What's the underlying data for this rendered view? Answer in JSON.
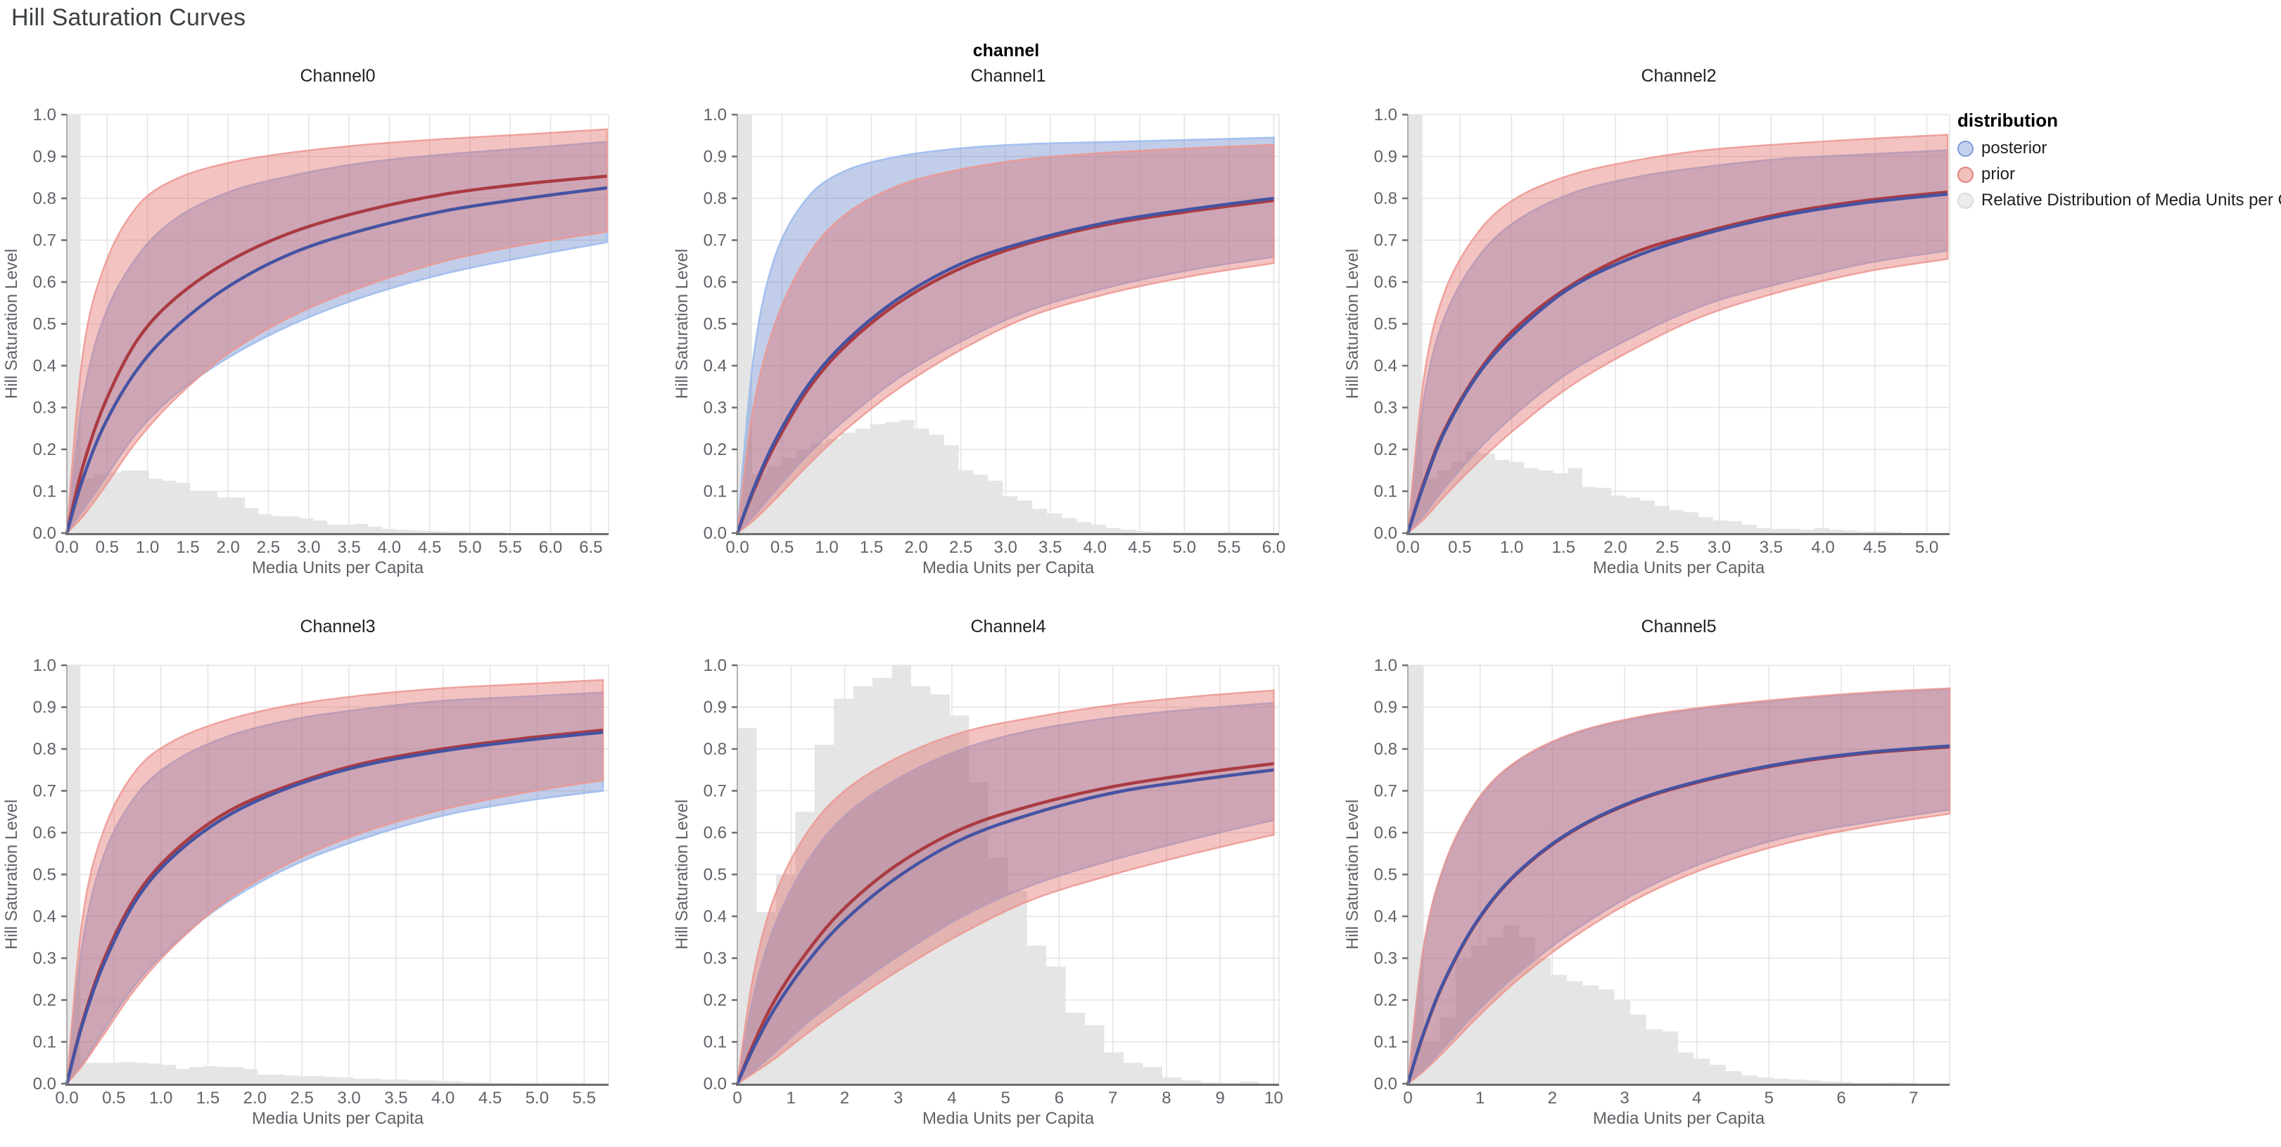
{
  "page_title": "Hill Saturation Curves",
  "facet_header": "channel",
  "legend": {
    "title": "distribution",
    "items": [
      {
        "label": "posterior",
        "fill": "#c3d2ee",
        "stroke": "#7e9bd9"
      },
      {
        "label": "prior",
        "fill": "#f3c1bd",
        "stroke": "#dd837e"
      },
      {
        "label": "Relative Distribution of Media Units per Capita",
        "fill": "#ececec",
        "stroke": "#dadada"
      }
    ]
  },
  "axes": {
    "x_label": "Media Units per Capita",
    "y_label": "Hill Saturation Level",
    "y_ticks": [
      "0.0",
      "0.1",
      "0.2",
      "0.3",
      "0.4",
      "0.5",
      "0.6",
      "0.7",
      "0.8",
      "0.9",
      "1.0"
    ],
    "ylim": [
      0,
      1
    ]
  },
  "colors": {
    "prior_fill": "rgba(224,106,99,0.40)",
    "prior_edge": "rgba(236,150,144,0.85)",
    "prior_line": "#aa3b42",
    "posterior_fill": "rgba(100,130,200,0.40)",
    "posterior_edge": "rgba(160,190,238,0.95)",
    "posterior_line": "#4553a2",
    "histogram_fill": "rgba(208,208,208,0.55)",
    "grid": "#e3e3e3",
    "axis": "#6e6e6e",
    "tick_text": "#5f6368",
    "title_text": "#1f1f1f"
  },
  "chart_data": [
    {
      "type": "line",
      "title": "Channel0",
      "xlabel": "Media Units per Capita",
      "ylabel": "Hill Saturation Level",
      "x_max": 6.72,
      "x_ticks": [
        0,
        0.5,
        1,
        1.5,
        2,
        2.5,
        3,
        3.5,
        4,
        4.5,
        5,
        5.5,
        6,
        6.5
      ],
      "x_tick_labels": [
        "0.0",
        "0.5",
        "1.0",
        "1.5",
        "2.0",
        "2.5",
        "3.0",
        "3.5",
        "4.0",
        "4.5",
        "5.0",
        "5.5",
        "6.0",
        "6.5"
      ],
      "x": [
        0,
        0.2,
        0.47,
        0.87,
        1.34,
        2.01,
        2.81,
        3.69,
        4.69,
        5.7,
        6.7
      ],
      "posterior": {
        "lo": [
          0,
          0.055,
          0.13,
          0.24,
          0.33,
          0.42,
          0.5,
          0.565,
          0.62,
          0.66,
          0.695
        ],
        "mean": [
          0,
          0.13,
          0.26,
          0.39,
          0.49,
          0.59,
          0.67,
          0.725,
          0.77,
          0.8,
          0.825
        ],
        "hi": [
          0,
          0.32,
          0.52,
          0.66,
          0.75,
          0.815,
          0.855,
          0.885,
          0.905,
          0.92,
          0.935
        ]
      },
      "prior": {
        "lo": [
          0,
          0.04,
          0.11,
          0.22,
          0.32,
          0.43,
          0.52,
          0.59,
          0.65,
          0.69,
          0.72
        ],
        "mean": [
          0,
          0.16,
          0.31,
          0.46,
          0.56,
          0.65,
          0.72,
          0.77,
          0.81,
          0.835,
          0.853
        ],
        "hi": [
          0,
          0.43,
          0.64,
          0.78,
          0.845,
          0.885,
          0.91,
          0.928,
          0.942,
          0.953,
          0.965
        ]
      },
      "histogram": {
        "bin_width": 0.17,
        "start": 0,
        "heights": [
          1.0,
          0.13,
          0.14,
          0.145,
          0.15,
          0.15,
          0.13,
          0.125,
          0.12,
          0.1,
          0.1,
          0.085,
          0.085,
          0.06,
          0.045,
          0.04,
          0.04,
          0.035,
          0.03,
          0.02,
          0.02,
          0.022,
          0.015,
          0.01,
          0.008,
          0.006,
          0.005,
          0.004,
          0.003,
          0.003,
          0.002,
          0.002
        ]
      }
    },
    {
      "type": "line",
      "title": "Channel1",
      "xlabel": "Media Units per Capita",
      "ylabel": "Hill Saturation Level",
      "x_max": 6.06,
      "x_ticks": [
        0,
        0.5,
        1,
        1.5,
        2,
        2.5,
        3,
        3.5,
        4,
        4.5,
        5,
        5.5,
        6
      ],
      "x_tick_labels": [
        "0.0",
        "0.5",
        "1.0",
        "1.5",
        "2.0",
        "2.5",
        "3.0",
        "3.5",
        "4.0",
        "4.5",
        "5.0",
        "5.5",
        "6.0"
      ],
      "x": [
        0,
        0.18,
        0.42,
        0.78,
        1.2,
        1.8,
        2.52,
        3.3,
        4.2,
        5.1,
        6.0
      ],
      "posterior": {
        "lo": [
          0,
          0.04,
          0.1,
          0.185,
          0.27,
          0.37,
          0.46,
          0.535,
          0.59,
          0.63,
          0.66
        ],
        "mean": [
          0,
          0.105,
          0.22,
          0.35,
          0.455,
          0.56,
          0.645,
          0.7,
          0.745,
          0.775,
          0.8
        ],
        "hi": [
          0,
          0.42,
          0.66,
          0.8,
          0.865,
          0.9,
          0.92,
          0.93,
          0.935,
          0.94,
          0.945
        ]
      },
      "prior": {
        "lo": [
          0,
          0.03,
          0.08,
          0.16,
          0.245,
          0.345,
          0.44,
          0.52,
          0.575,
          0.615,
          0.645
        ],
        "mean": [
          0,
          0.1,
          0.21,
          0.34,
          0.445,
          0.55,
          0.635,
          0.695,
          0.74,
          0.77,
          0.795
        ],
        "hi": [
          0,
          0.3,
          0.5,
          0.66,
          0.76,
          0.83,
          0.87,
          0.895,
          0.91,
          0.92,
          0.928
        ]
      },
      "histogram": {
        "bin_width": 0.165,
        "start": 0,
        "heights": [
          1.0,
          0.14,
          0.16,
          0.18,
          0.2,
          0.215,
          0.225,
          0.24,
          0.25,
          0.26,
          0.265,
          0.27,
          0.25,
          0.235,
          0.21,
          0.15,
          0.14,
          0.125,
          0.088,
          0.078,
          0.058,
          0.047,
          0.036,
          0.026,
          0.02,
          0.012,
          0.008,
          0.005,
          0.003,
          0.002,
          0.002,
          0.001,
          0.001,
          0.003,
          0.001,
          0.001
        ]
      }
    },
    {
      "type": "line",
      "title": "Channel2",
      "xlabel": "Media Units per Capita",
      "ylabel": "Hill Saturation Level",
      "x_max": 5.22,
      "x_ticks": [
        0,
        0.5,
        1,
        1.5,
        2,
        2.5,
        3,
        3.5,
        4,
        4.5,
        5
      ],
      "x_tick_labels": [
        "0.0",
        "0.5",
        "1.0",
        "1.5",
        "2.0",
        "2.5",
        "3.0",
        "3.5",
        "4.0",
        "4.5",
        "5.0"
      ],
      "x": [
        0,
        0.16,
        0.36,
        0.68,
        1.04,
        1.56,
        2.18,
        2.86,
        3.64,
        4.42,
        5.2
      ],
      "posterior": {
        "lo": [
          0,
          0.045,
          0.11,
          0.2,
          0.285,
          0.385,
          0.47,
          0.545,
          0.6,
          0.645,
          0.675
        ],
        "mean": [
          0,
          0.12,
          0.245,
          0.38,
          0.48,
          0.585,
          0.66,
          0.715,
          0.76,
          0.79,
          0.81
        ],
        "hi": [
          0,
          0.33,
          0.52,
          0.66,
          0.745,
          0.81,
          0.85,
          0.875,
          0.895,
          0.905,
          0.915
        ]
      },
      "prior": {
        "lo": [
          0,
          0.035,
          0.09,
          0.17,
          0.25,
          0.35,
          0.44,
          0.52,
          0.58,
          0.625,
          0.655
        ],
        "mean": [
          0,
          0.125,
          0.25,
          0.385,
          0.49,
          0.59,
          0.67,
          0.72,
          0.765,
          0.795,
          0.815
        ],
        "hi": [
          0,
          0.38,
          0.58,
          0.72,
          0.8,
          0.855,
          0.89,
          0.915,
          0.93,
          0.942,
          0.952
        ]
      },
      "histogram": {
        "bin_width": 0.14,
        "start": 0,
        "heights": [
          1.0,
          0.13,
          0.15,
          0.17,
          0.195,
          0.19,
          0.175,
          0.17,
          0.155,
          0.15,
          0.143,
          0.155,
          0.11,
          0.108,
          0.09,
          0.085,
          0.078,
          0.065,
          0.055,
          0.05,
          0.038,
          0.03,
          0.028,
          0.02,
          0.012,
          0.01,
          0.01,
          0.008,
          0.012,
          0.008,
          0.006,
          0.004,
          0.004,
          0.003
        ]
      }
    },
    {
      "type": "line",
      "title": "Channel3",
      "xlabel": "Media Units per Capita",
      "ylabel": "Hill Saturation Level",
      "x_max": 5.76,
      "x_ticks": [
        0,
        0.5,
        1,
        1.5,
        2,
        2.5,
        3,
        3.5,
        4,
        4.5,
        5,
        5.5
      ],
      "x_tick_labels": [
        "0.0",
        "0.5",
        "1.0",
        "1.5",
        "2.0",
        "2.5",
        "3.0",
        "3.5",
        "4.0",
        "4.5",
        "5.0",
        "5.5"
      ],
      "x": [
        0,
        0.17,
        0.4,
        0.74,
        1.14,
        1.71,
        2.39,
        3.14,
        3.99,
        4.85,
        5.7
      ],
      "posterior": {
        "lo": [
          0,
          0.05,
          0.13,
          0.24,
          0.335,
          0.435,
          0.52,
          0.585,
          0.64,
          0.675,
          0.7
        ],
        "mean": [
          0,
          0.145,
          0.29,
          0.44,
          0.545,
          0.64,
          0.71,
          0.76,
          0.795,
          0.82,
          0.84
        ],
        "hi": [
          0,
          0.34,
          0.55,
          0.69,
          0.77,
          0.83,
          0.87,
          0.895,
          0.915,
          0.925,
          0.935
        ]
      },
      "prior": {
        "lo": [
          0,
          0.045,
          0.12,
          0.23,
          0.33,
          0.44,
          0.53,
          0.6,
          0.655,
          0.695,
          0.725
        ],
        "mean": [
          0,
          0.15,
          0.3,
          0.45,
          0.555,
          0.65,
          0.715,
          0.765,
          0.8,
          0.825,
          0.845
        ],
        "hi": [
          0,
          0.4,
          0.61,
          0.75,
          0.82,
          0.87,
          0.905,
          0.928,
          0.945,
          0.955,
          0.965
        ]
      },
      "histogram": {
        "bin_width": 0.145,
        "start": 0,
        "heights": [
          1.0,
          0.05,
          0.05,
          0.05,
          0.052,
          0.05,
          0.048,
          0.045,
          0.035,
          0.04,
          0.042,
          0.04,
          0.04,
          0.035,
          0.022,
          0.022,
          0.02,
          0.018,
          0.018,
          0.016,
          0.015,
          0.012,
          0.012,
          0.01,
          0.01,
          0.008,
          0.008,
          0.007,
          0.006,
          0.004,
          0.003,
          0.002,
          0.002,
          0.001,
          0.001,
          0.001,
          0.001,
          0.001
        ]
      }
    },
    {
      "type": "line",
      "title": "Channel4",
      "xlabel": "Media Units per Capita",
      "ylabel": "Hill Saturation Level",
      "x_max": 10.1,
      "x_ticks": [
        0,
        1,
        2,
        3,
        4,
        5,
        6,
        7,
        8,
        9,
        10
      ],
      "x_tick_labels": [
        "0",
        "1",
        "2",
        "3",
        "4",
        "5",
        "6",
        "7",
        "8",
        "9",
        "10"
      ],
      "x": [
        0,
        0.3,
        0.7,
        1.3,
        2.0,
        3.0,
        4.2,
        5.5,
        7.0,
        8.5,
        10.0
      ],
      "posterior": {
        "lo": [
          0,
          0.03,
          0.075,
          0.145,
          0.215,
          0.305,
          0.4,
          0.475,
          0.535,
          0.585,
          0.63
        ],
        "mean": [
          0,
          0.085,
          0.18,
          0.29,
          0.39,
          0.495,
          0.585,
          0.645,
          0.695,
          0.725,
          0.75
        ],
        "hi": [
          0,
          0.21,
          0.38,
          0.53,
          0.64,
          0.73,
          0.8,
          0.845,
          0.875,
          0.895,
          0.91
        ]
      },
      "prior": {
        "lo": [
          0,
          0.025,
          0.06,
          0.12,
          0.185,
          0.27,
          0.36,
          0.44,
          0.5,
          0.55,
          0.595
        ],
        "mean": [
          0,
          0.095,
          0.2,
          0.315,
          0.42,
          0.525,
          0.61,
          0.665,
          0.71,
          0.74,
          0.765
        ],
        "hi": [
          0,
          0.26,
          0.45,
          0.6,
          0.7,
          0.78,
          0.84,
          0.875,
          0.905,
          0.925,
          0.94
        ]
      },
      "histogram": {
        "bin_width": 0.36,
        "start": 0,
        "heights": [
          0.85,
          0.41,
          0.5,
          0.65,
          0.81,
          0.92,
          0.95,
          0.97,
          1.0,
          0.95,
          0.93,
          0.88,
          0.72,
          0.54,
          0.46,
          0.33,
          0.28,
          0.17,
          0.14,
          0.075,
          0.05,
          0.04,
          0.015,
          0.008,
          0.003,
          0.002,
          0.005
        ]
      }
    },
    {
      "type": "line",
      "title": "Channel5",
      "xlabel": "Media Units per Capita",
      "ylabel": "Hill Saturation Level",
      "x_max": 7.5,
      "x_ticks": [
        0,
        1,
        2,
        3,
        4,
        5,
        6,
        7
      ],
      "x_tick_labels": [
        "0",
        "1",
        "2",
        "3",
        "4",
        "5",
        "6",
        "7"
      ],
      "x": [
        0,
        0.22,
        0.52,
        0.97,
        1.5,
        2.25,
        3.15,
        4.12,
        5.25,
        6.37,
        7.5
      ],
      "posterior": {
        "lo": [
          0,
          0.035,
          0.09,
          0.175,
          0.26,
          0.36,
          0.455,
          0.53,
          0.59,
          0.625,
          0.655
        ],
        "mean": [
          0,
          0.122,
          0.252,
          0.392,
          0.502,
          0.602,
          0.677,
          0.727,
          0.767,
          0.792,
          0.807
        ],
        "hi": [
          0,
          0.328,
          0.528,
          0.678,
          0.768,
          0.833,
          0.873,
          0.898,
          0.918,
          0.933,
          0.943
        ]
      },
      "prior": {
        "lo": [
          0,
          0.03,
          0.08,
          0.16,
          0.245,
          0.345,
          0.44,
          0.515,
          0.575,
          0.615,
          0.645
        ],
        "mean": [
          0,
          0.12,
          0.25,
          0.39,
          0.5,
          0.6,
          0.675,
          0.725,
          0.765,
          0.79,
          0.805
        ],
        "hi": [
          0,
          0.33,
          0.53,
          0.68,
          0.77,
          0.835,
          0.875,
          0.9,
          0.92,
          0.935,
          0.945
        ]
      },
      "histogram": {
        "bin_width": 0.22,
        "start": 0,
        "heights": [
          1.0,
          0.1,
          0.16,
          0.3,
          0.33,
          0.35,
          0.38,
          0.35,
          0.3,
          0.26,
          0.245,
          0.235,
          0.225,
          0.2,
          0.165,
          0.13,
          0.125,
          0.075,
          0.06,
          0.045,
          0.03,
          0.02,
          0.015,
          0.012,
          0.01,
          0.008,
          0.005,
          0.004,
          0.002,
          0.002,
          0.003,
          0.002
        ]
      }
    }
  ]
}
